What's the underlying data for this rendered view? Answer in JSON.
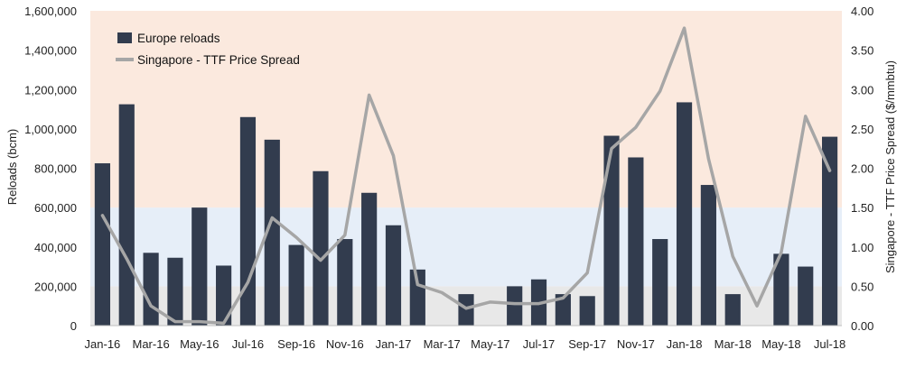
{
  "chart_data": {
    "type": "bar+line",
    "categories": [
      "Jan-16",
      "Feb-16",
      "Mar-16",
      "Apr-16",
      "May-16",
      "Jun-16",
      "Jul-16",
      "Aug-16",
      "Sep-16",
      "Oct-16",
      "Nov-16",
      "Dec-16",
      "Jan-17",
      "Feb-17",
      "Mar-17",
      "Apr-17",
      "May-17",
      "Jun-17",
      "Jul-17",
      "Aug-17",
      "Sep-17",
      "Oct-17",
      "Nov-17",
      "Dec-17",
      "Jan-18",
      "Feb-18",
      "Mar-18",
      "Apr-18",
      "May-18",
      "Jun-18",
      "Jul-18"
    ],
    "x_tick_labels": [
      "Jan-16",
      "Mar-16",
      "May-16",
      "Jul-16",
      "Sep-16",
      "Nov-16",
      "Jan-17",
      "Mar-17",
      "May-17",
      "Jul-17",
      "Sep-17",
      "Nov-17",
      "Jan-18",
      "Mar-18",
      "May-18",
      "Jul-18"
    ],
    "series": [
      {
        "name": "Europe reloads",
        "type": "bar",
        "axis": "left",
        "color": "#323c4e",
        "values": [
          825000,
          1125000,
          370000,
          345000,
          600000,
          305000,
          1060000,
          945000,
          410000,
          785000,
          440000,
          675000,
          510000,
          285000,
          0,
          160000,
          0,
          200000,
          235000,
          160000,
          150000,
          965000,
          855000,
          440000,
          1135000,
          715000,
          160000,
          0,
          365000,
          300000,
          960000
        ]
      },
      {
        "name": "Singapore - TTF Price Spread",
        "type": "line",
        "axis": "right",
        "color": "#a6a6a6",
        "values": [
          1.4,
          0.85,
          0.25,
          0.05,
          0.05,
          0.03,
          0.55,
          1.37,
          1.12,
          0.83,
          1.15,
          2.93,
          2.16,
          0.52,
          0.42,
          0.22,
          0.3,
          0.28,
          0.28,
          0.35,
          0.67,
          2.25,
          2.52,
          2.98,
          3.78,
          2.12,
          0.88,
          0.25,
          0.93,
          2.66,
          1.97
        ]
      }
    ],
    "ylabel_left": "Reloads (bcm)",
    "ylabel_right": "Singapore - TTF Price Spread ($/mmbtu)",
    "ylim_left": [
      0,
      1600000
    ],
    "ylim_right": [
      0,
      4.0
    ],
    "yticks_left": [
      "0",
      "200,000",
      "400,000",
      "600,000",
      "800,000",
      "1,000,000",
      "1,200,000",
      "1,400,000",
      "1,600,000"
    ],
    "yticks_right": [
      "0.00",
      "0.50",
      "1.00",
      "1.50",
      "2.00",
      "2.50",
      "3.00",
      "3.50",
      "4.00"
    ],
    "background_bands": [
      {
        "from": 0,
        "to": 200000,
        "color": "#e8e8e8"
      },
      {
        "from": 200000,
        "to": 600000,
        "color": "#e6eef8"
      },
      {
        "from": 600000,
        "to": 1600000,
        "color": "#fbe9de"
      }
    ],
    "legend": {
      "position": "top-left"
    },
    "grid": false
  }
}
